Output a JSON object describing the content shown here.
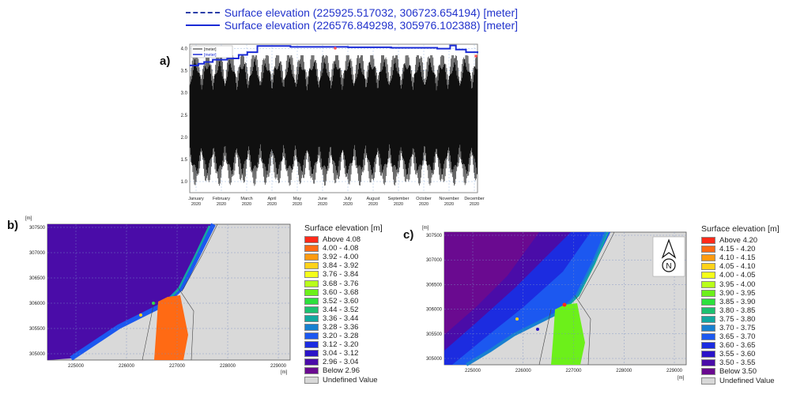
{
  "chart_data": [
    {
      "type": "line",
      "panel_label": "a)",
      "series": [
        {
          "name": "Surface elevation (225925.517032, 306723.654194) [meter]",
          "legend_short": "[meter]",
          "style": "dashed",
          "color": "#000000"
        },
        {
          "name": "Surface elevation (226576.849298, 305976.102388) [meter]",
          "legend_short": "[meter]",
          "style": "solid",
          "color": "#1a2bd6"
        }
      ],
      "y_ticks": [
        "4.0",
        "3.5",
        "3.0",
        "2.5",
        "2.0",
        "1.5",
        "1.0"
      ],
      "ylim": [
        0.75,
        4.1
      ],
      "x_ticks": [
        {
          "month": "January",
          "year": "2020"
        },
        {
          "month": "February",
          "year": "2020"
        },
        {
          "month": "March",
          "year": "2020"
        },
        {
          "month": "April",
          "year": "2020"
        },
        {
          "month": "May",
          "year": "2020"
        },
        {
          "month": "June",
          "year": "2020"
        },
        {
          "month": "July",
          "year": "2020"
        },
        {
          "month": "August",
          "year": "2020"
        },
        {
          "month": "September",
          "year": "2020"
        },
        {
          "month": "October",
          "year": "2020"
        },
        {
          "month": "November",
          "year": "2020"
        },
        {
          "month": "December",
          "year": "2020"
        }
      ],
      "blue_series_steps": [
        {
          "t": 0.0,
          "v": 3.62
        },
        {
          "t": 0.03,
          "v": 3.66
        },
        {
          "t": 0.05,
          "v": 3.7
        },
        {
          "t": 0.08,
          "v": 3.75
        },
        {
          "t": 0.13,
          "v": 3.78
        },
        {
          "t": 0.17,
          "v": 3.86
        },
        {
          "t": 0.2,
          "v": 3.92
        },
        {
          "t": 0.235,
          "v": 4.06
        },
        {
          "t": 0.35,
          "v": 4.04
        },
        {
          "t": 0.55,
          "v": 4.03
        },
        {
          "t": 0.7,
          "v": 4.02
        },
        {
          "t": 0.86,
          "v": 4.0
        },
        {
          "t": 0.905,
          "v": 4.07
        },
        {
          "t": 0.925,
          "v": 3.98
        },
        {
          "t": 0.96,
          "v": 3.92
        },
        {
          "t": 1.0,
          "v": 3.9
        }
      ],
      "grid": true
    },
    {
      "type": "heatmap",
      "panel_label": "b)",
      "y_unit": "[m]",
      "x_unit": "[m]",
      "y_ticks": [
        "307500",
        "307000",
        "306500",
        "306000",
        "305500",
        "305000"
      ],
      "x_ticks": [
        "225000",
        "226000",
        "227000",
        "228000",
        "229000"
      ],
      "legend_title": "Surface elevation [m]",
      "legend": [
        {
          "label": "Above 4.08",
          "color": "#ff2a1a"
        },
        {
          "label": "4.00 - 4.08",
          "color": "#ff6a14"
        },
        {
          "label": "3.92 - 4.00",
          "color": "#ff9a10"
        },
        {
          "label": "3.84 - 3.92",
          "color": "#ffd21a"
        },
        {
          "label": "3.76 - 3.84",
          "color": "#f4ff1a"
        },
        {
          "label": "3.68 - 3.76",
          "color": "#b8ff1a"
        },
        {
          "label": "3.60 - 3.68",
          "color": "#6cf01a"
        },
        {
          "label": "3.52 - 3.60",
          "color": "#2ce03c"
        },
        {
          "label": "3.44 - 3.52",
          "color": "#1cc070"
        },
        {
          "label": "3.36 - 3.44",
          "color": "#12a8a0"
        },
        {
          "label": "3.28 - 3.36",
          "color": "#1880d0"
        },
        {
          "label": "3.20 - 3.28",
          "color": "#1c58f0"
        },
        {
          "label": "3.12 - 3.20",
          "color": "#1c2ce0"
        },
        {
          "label": "3.04 - 3.12",
          "color": "#2a14c8"
        },
        {
          "label": "2.96 - 3.04",
          "color": "#4a0ca8"
        },
        {
          "label": "Below 2.96",
          "color": "#6a0a90"
        },
        {
          "label": "Undefined Value",
          "color": "#d8d8d8"
        }
      ]
    },
    {
      "type": "heatmap",
      "panel_label": "c)",
      "y_unit": "[m]",
      "x_unit": "[m]",
      "y_ticks": [
        "307500",
        "307000",
        "306500",
        "306000",
        "305500",
        "305000"
      ],
      "x_ticks": [
        "225000",
        "226000",
        "227000",
        "228000",
        "229000"
      ],
      "north_label": "N",
      "legend_title": "Surface elevation [m]",
      "legend": [
        {
          "label": "Above 4.20",
          "color": "#ff2a1a"
        },
        {
          "label": "4.15 - 4.20",
          "color": "#ff6a14"
        },
        {
          "label": "4.10 - 4.15",
          "color": "#ff9a10"
        },
        {
          "label": "4.05 - 4.10",
          "color": "#ffd21a"
        },
        {
          "label": "4.00 - 4.05",
          "color": "#f4ff1a"
        },
        {
          "label": "3.95 - 4.00",
          "color": "#b8ff1a"
        },
        {
          "label": "3.90 - 3.95",
          "color": "#6cf01a"
        },
        {
          "label": "3.85 - 3.90",
          "color": "#2ce03c"
        },
        {
          "label": "3.80 - 3.85",
          "color": "#1cc070"
        },
        {
          "label": "3.75 - 3.80",
          "color": "#12a8a0"
        },
        {
          "label": "3.70 - 3.75",
          "color": "#1880d0"
        },
        {
          "label": "3.65 - 3.70",
          "color": "#1c58f0"
        },
        {
          "label": "3.60 - 3.65",
          "color": "#1c2ce0"
        },
        {
          "label": "3.55 - 3.60",
          "color": "#2a14c8"
        },
        {
          "label": "3.50 - 3.55",
          "color": "#4a0ca8"
        },
        {
          "label": "Below 3.50",
          "color": "#6a0a90"
        },
        {
          "label": "Undefined Value",
          "color": "#d8d8d8"
        }
      ]
    }
  ]
}
